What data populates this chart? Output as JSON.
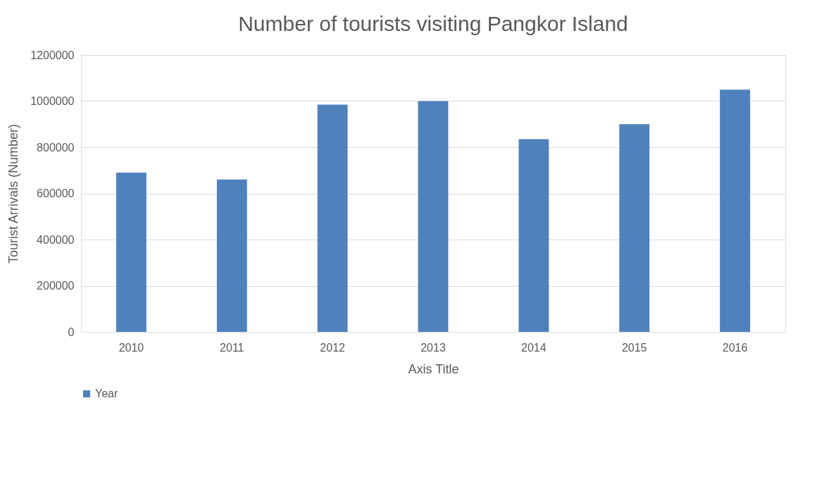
{
  "chart_data": {
    "type": "bar",
    "title": "Number of tourists visiting Pangkor Island",
    "xlabel": "Axis Title",
    "ylabel": "Tourist Arrivals (Number)",
    "categories": [
      "2010",
      "2011",
      "2012",
      "2013",
      "2014",
      "2015",
      "2016"
    ],
    "series": [
      {
        "name": "Year",
        "color": "#4f81bd",
        "values": [
          690000,
          660000,
          985000,
          1000000,
          835000,
          900000,
          1050000
        ]
      }
    ],
    "ylim": [
      0,
      1200000
    ],
    "yticks": [
      0,
      200000,
      400000,
      600000,
      800000,
      1000000,
      1200000
    ],
    "grid": "y",
    "legend": "bottom"
  }
}
